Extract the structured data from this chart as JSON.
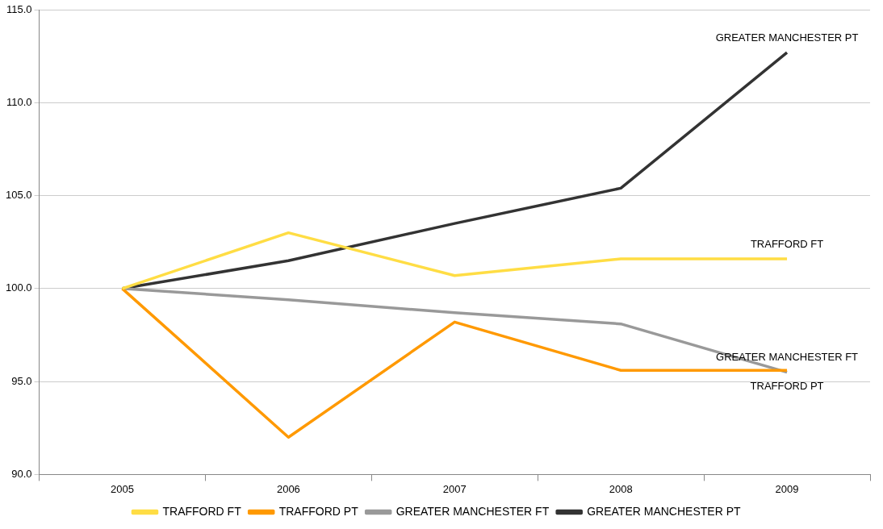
{
  "chart_data": {
    "type": "line",
    "categories": [
      "2005",
      "2006",
      "2007",
      "2008",
      "2009"
    ],
    "series": [
      {
        "name": "TRAFFORD FT",
        "color": "#ffdd44",
        "values": [
          100,
          103.0,
          100.7,
          101.6,
          101.6
        ]
      },
      {
        "name": "TRAFFORD PT",
        "color": "#ff9900",
        "values": [
          100,
          92.0,
          98.2,
          95.6,
          95.6
        ]
      },
      {
        "name": "GREATER MANCHESTER FT",
        "color": "#999999",
        "values": [
          100,
          99.4,
          98.7,
          98.1,
          95.5
        ]
      },
      {
        "name": "GREATER MANCHESTER PT",
        "color": "#333333",
        "values": [
          100,
          101.5,
          103.5,
          105.4,
          112.7
        ]
      }
    ],
    "ylim": [
      90,
      115
    ],
    "yticks": [
      {
        "value": 90,
        "label": "90.0"
      },
      {
        "value": 95,
        "label": "95.0"
      },
      {
        "value": 100,
        "label": "100.0"
      },
      {
        "value": 105,
        "label": "105.0"
      },
      {
        "value": 110,
        "label": "110.0"
      },
      {
        "value": 115,
        "label": "115.0"
      }
    ],
    "annotations": [
      {
        "text": "GREATER MANCHESTER PT",
        "x": "2009",
        "y": 112.7
      },
      {
        "text": "TRAFFORD FT",
        "x": "2009",
        "y": 101.6
      },
      {
        "text": "GREATER MANCHESTER FT",
        "x": "2009",
        "y": 95.5
      },
      {
        "text": "TRAFFORD PT",
        "x": "2009",
        "y": 95.6
      }
    ],
    "grid": "y",
    "legend": "bottom",
    "marker": "none",
    "line_style": "solid"
  }
}
